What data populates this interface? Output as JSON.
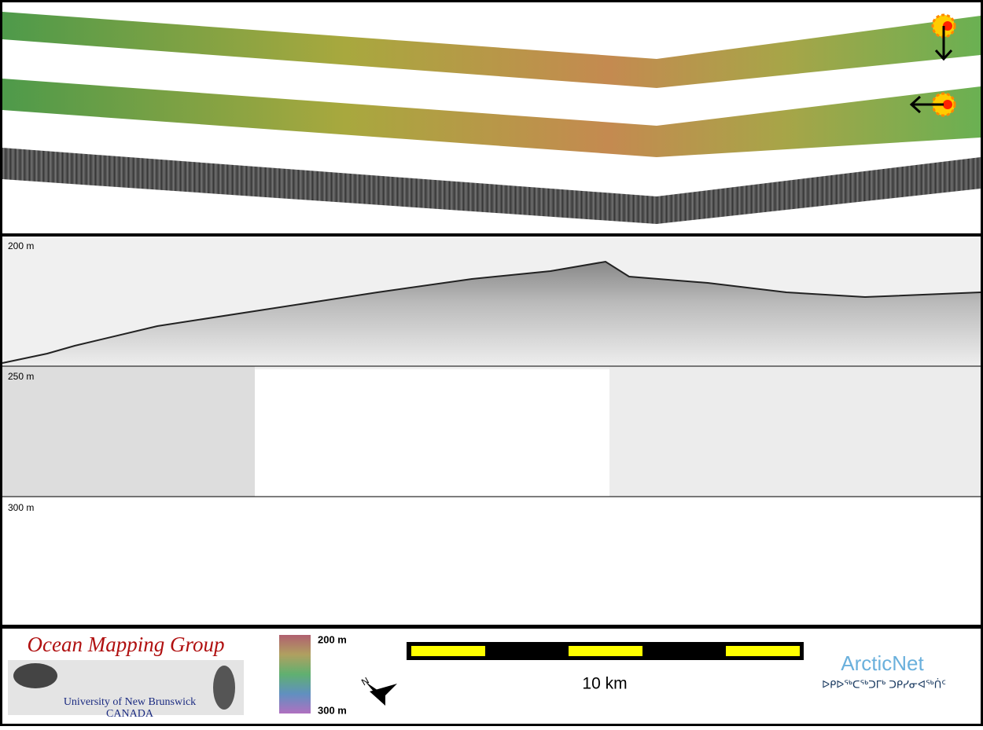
{
  "depth_axis": {
    "labels": [
      "200 m",
      "250 m",
      "300 m"
    ]
  },
  "logo": {
    "title": "Ocean Mapping Group",
    "university": "University of New Brunswick",
    "country": "CANADA"
  },
  "colorbar": {
    "top_label": "200 m",
    "bottom_label": "300 m"
  },
  "scale_bar": {
    "label": "10 km"
  },
  "partner": {
    "name": "ArcticNet",
    "subtitle": "ᐅᑭᐅᖅᑕᖅᑐᒥᒃ ᑐᑭᓯᓂᐊᖅᑏᑦ"
  }
}
